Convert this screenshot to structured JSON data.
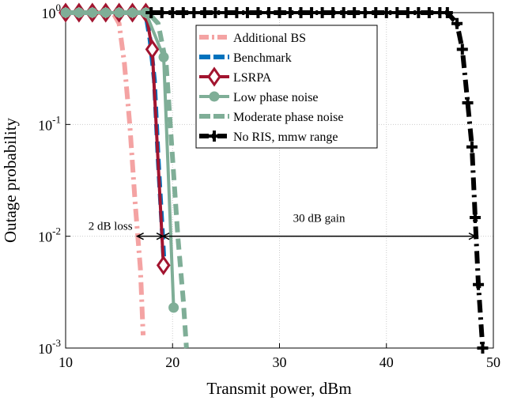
{
  "chart_data": {
    "type": "line",
    "xlabel": "Transmit power, dBm",
    "ylabel": "Outage probability",
    "xlim": [
      10,
      50
    ],
    "xticks": [
      10,
      20,
      30,
      40,
      50
    ],
    "ylim": [
      0.001,
      1
    ],
    "yticks": [
      {
        "value": 0.001,
        "label": "10^-3"
      },
      {
        "value": 0.01,
        "label": "10^-2"
      },
      {
        "value": 0.1,
        "label": "10^-1"
      },
      {
        "value": 1,
        "label": "10^0"
      }
    ],
    "log_y": true,
    "grid": true,
    "legend": "upper right",
    "series": [
      {
        "name": "Additional BS",
        "color": "#f4a3a3",
        "dash": "dashdot",
        "marker": null,
        "x": [
          10,
          12,
          14,
          14.5,
          15,
          15.5,
          16,
          16.5,
          17,
          17.25
        ],
        "values": [
          1,
          1,
          1,
          0.97,
          0.8,
          0.35,
          0.1,
          0.02,
          0.005,
          0.0013
        ]
      },
      {
        "name": "Benchmark",
        "color": "#0072bd",
        "dash": "dashed",
        "marker": null,
        "x": [
          10,
          12,
          14,
          16,
          17,
          17.5,
          17.9,
          18.3,
          18.65,
          19.0,
          19.17
        ],
        "values": [
          1,
          1,
          1,
          1,
          1,
          0.98,
          0.57,
          0.25,
          0.05,
          0.013,
          0.0066
        ]
      },
      {
        "name": "LSRPA",
        "color": "#a2142f",
        "dash": "solid",
        "marker": "diamond",
        "x": [
          10,
          11.25,
          12.5,
          13.75,
          15,
          16.25,
          17.5,
          18.1,
          19.15
        ],
        "values": [
          1,
          1,
          1,
          1,
          1,
          1,
          1,
          0.47,
          0.0055
        ]
      },
      {
        "name": "Low phase noise",
        "color": "#7fae97",
        "dash": "solid",
        "marker": "circle",
        "x": [
          10,
          11.25,
          12.5,
          13.75,
          15,
          16.25,
          17.5,
          19.17,
          20.1
        ],
        "values": [
          1,
          1,
          1,
          1,
          1,
          1,
          1,
          0.4,
          0.0023
        ]
      },
      {
        "name": "Moderate phase noise",
        "color": "#7fae97",
        "dash": "dashed",
        "marker": null,
        "x": [
          10,
          14,
          17,
          17.8,
          18.65,
          19.4,
          20,
          20.5,
          21.0,
          21.3
        ],
        "values": [
          1,
          1,
          1,
          0.98,
          0.8,
          0.35,
          0.05,
          0.0098,
          0.0027,
          0.001
        ]
      },
      {
        "name": "No RIS, mmw range",
        "color": "#000000",
        "dash": "dashdot",
        "marker": "plus",
        "x": [
          18,
          19,
          20,
          21,
          22,
          23,
          24,
          25,
          26,
          27,
          28,
          29,
          30,
          31,
          32,
          33,
          34,
          35,
          36,
          37,
          38,
          39,
          40,
          41,
          42,
          43,
          44,
          45,
          45.7,
          46.6,
          47.1,
          47.6,
          48.0,
          48.3,
          48.6,
          49.0
        ],
        "values": [
          1,
          1,
          1,
          1,
          1,
          1,
          1,
          1,
          1,
          1,
          1,
          1,
          1,
          1,
          1,
          1,
          1,
          1,
          1,
          1,
          1,
          1,
          1,
          1,
          1,
          1,
          1,
          1,
          1,
          0.8,
          0.47,
          0.156,
          0.063,
          0.0147,
          0.0037,
          0.001
        ]
      }
    ],
    "annotations": [
      {
        "text": "2 dB loss",
        "x": [
          16.7,
          19.1
        ],
        "y": 0.01
      },
      {
        "text": "30 dB gain",
        "x": [
          19.1,
          48.3
        ],
        "y": 0.01
      }
    ]
  }
}
